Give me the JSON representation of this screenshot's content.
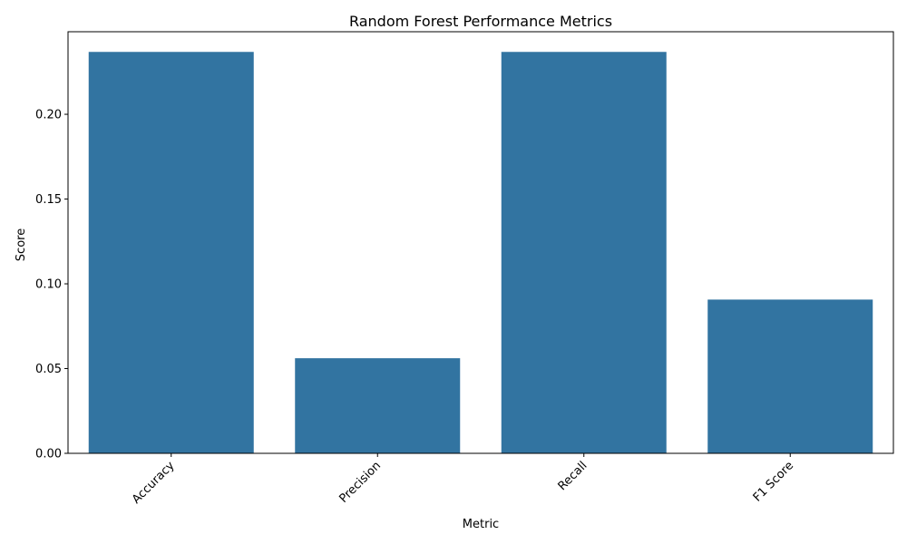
{
  "chart_data": {
    "type": "bar",
    "title": "Random Forest Performance Metrics",
    "xlabel": "Metric",
    "ylabel": "Score",
    "categories": [
      "Accuracy",
      "Precision",
      "Recall",
      "F1 Score"
    ],
    "values": [
      0.2368,
      0.0561,
      0.2368,
      0.0907
    ],
    "ylim": [
      0,
      0.2487
    ],
    "yticks": [
      0.0,
      0.05,
      0.1,
      0.15,
      0.2
    ],
    "ytick_labels": [
      "0.00",
      "0.05",
      "0.10",
      "0.15",
      "0.20"
    ],
    "bar_color": "#3274a1",
    "grid": false,
    "xtick_rotation": 45
  }
}
